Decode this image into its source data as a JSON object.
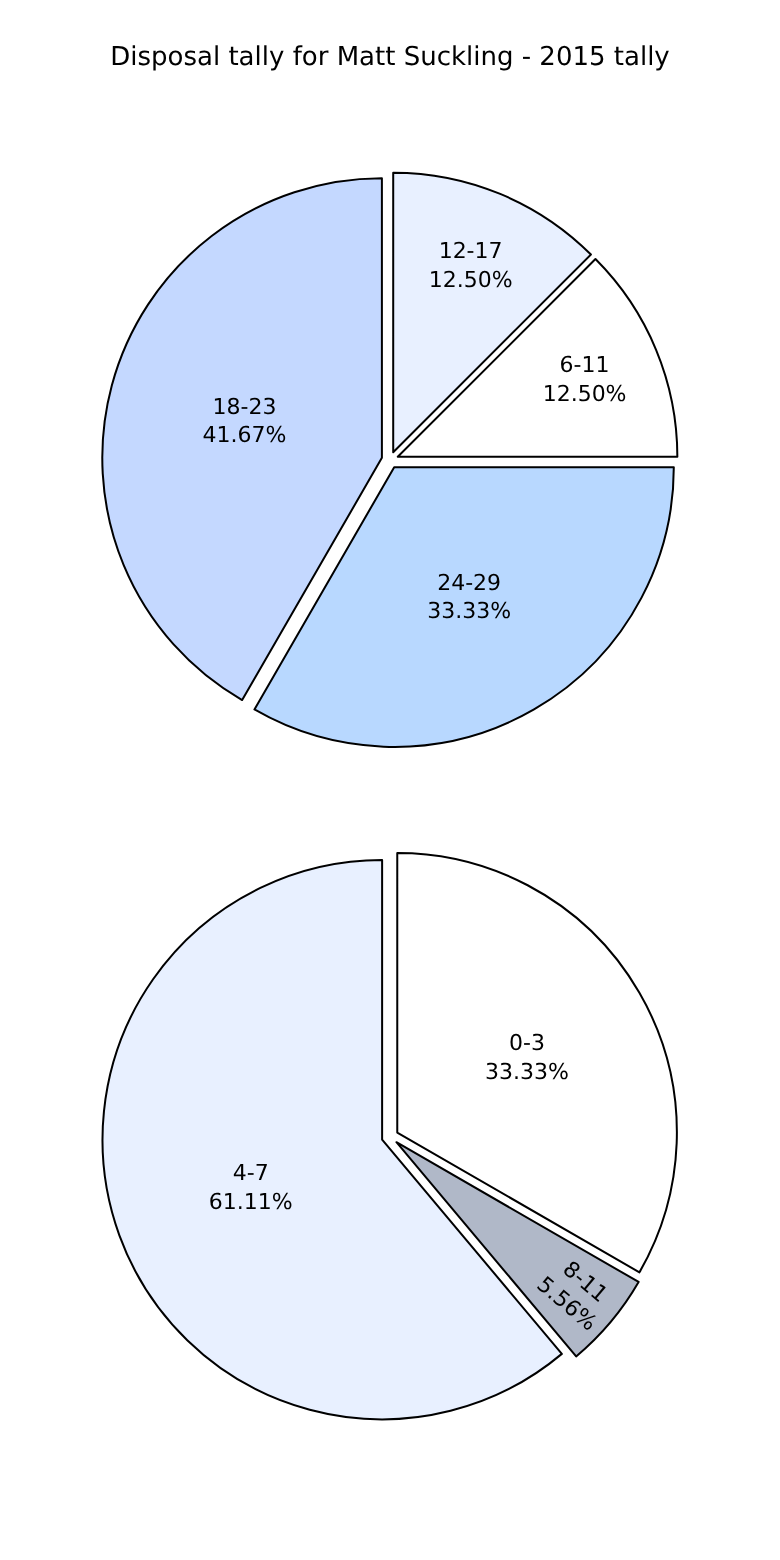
{
  "chart_data": [
    {
      "type": "pie",
      "title": "Disposal tally for Matt Suckling - 2015 tally",
      "categories": [
        "12-17",
        "6-11",
        "24-29",
        "18-23"
      ],
      "values": [
        12.5,
        12.5,
        33.33,
        41.67
      ],
      "colors": [
        "#e8f0ff",
        "#ffffff",
        "#b8d8ff",
        "#c4d8ff"
      ],
      "value_labels": [
        "12.50%",
        "12.50%",
        "33.33%",
        "41.67%"
      ]
    },
    {
      "type": "pie",
      "categories": [
        "0-3",
        "8-11",
        "4-7"
      ],
      "values": [
        33.33,
        5.56,
        61.11
      ],
      "colors": [
        "#ffffff",
        "#b0b8c8",
        "#e8f0ff"
      ],
      "value_labels": [
        "33.33%",
        "5.56%",
        "61.11%"
      ]
    }
  ]
}
